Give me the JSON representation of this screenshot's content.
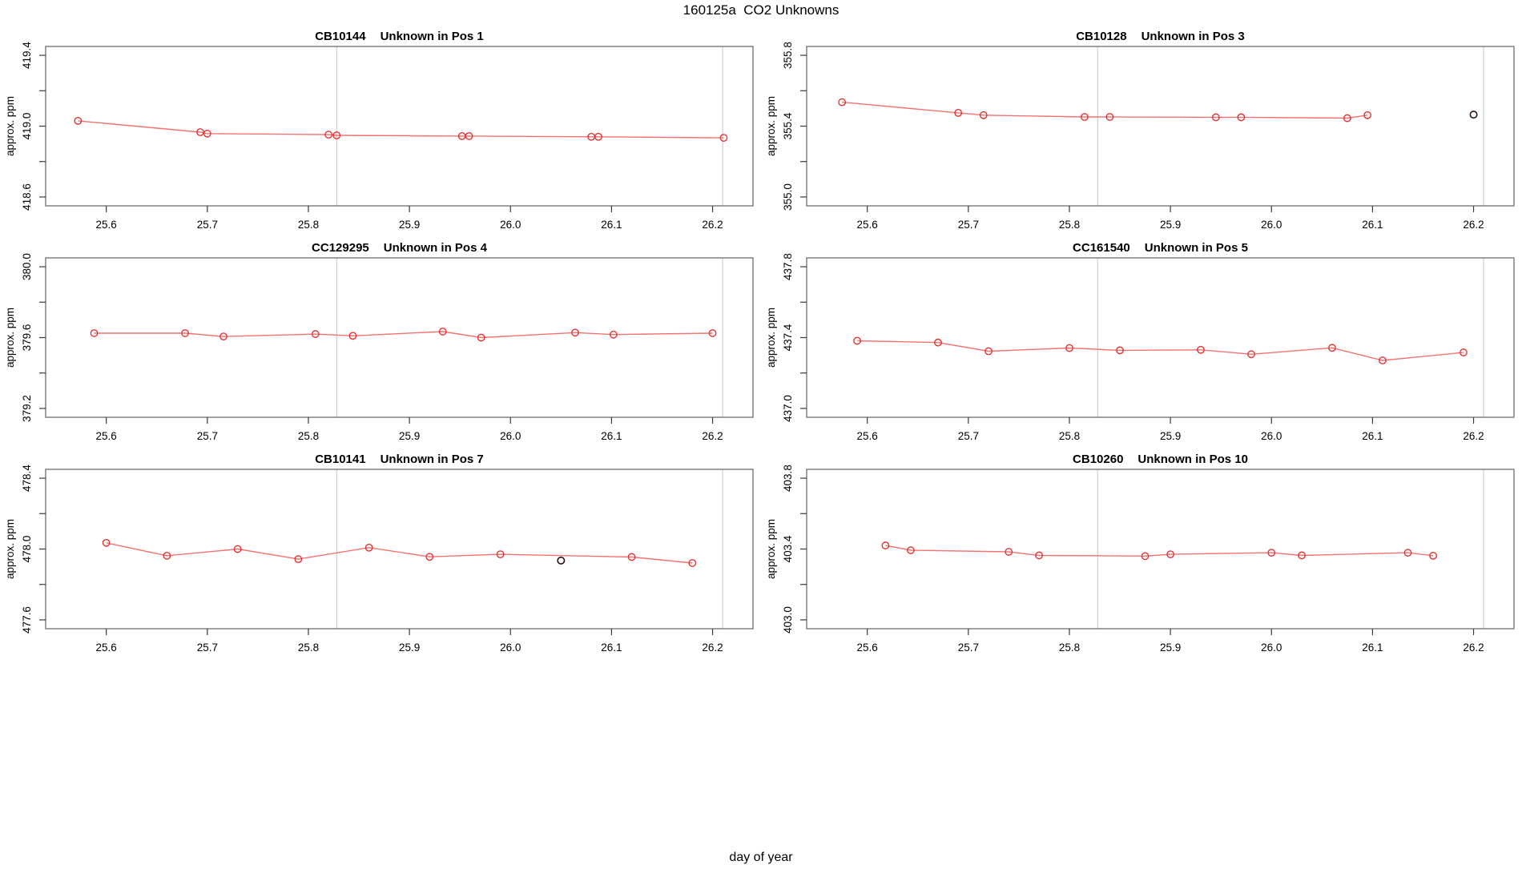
{
  "figure": {
    "main_title": "160125a  CO2 Unknowns",
    "outer_x_label": "day of year",
    "y_axis_label": "approx. ppm"
  },
  "style": {
    "series_color": "#e23232",
    "line_color": "#f47272",
    "flagged_color": "#2a0e0e",
    "vline_color": "#cdcdcd",
    "box_color": "#787878",
    "tick_color": "#3a3a3a",
    "text_color": "#000000",
    "background": "#ffffff"
  },
  "axes": {
    "x_domain": [
      25.54,
      26.24
    ],
    "x_tick_values": [
      25.6,
      25.7,
      25.8,
      25.9,
      26.0,
      26.1,
      26.2
    ],
    "x_tick_labels": [
      "25.6",
      "25.7",
      "25.8",
      "25.9",
      "26.0",
      "26.1",
      "26.2"
    ],
    "vlines": [
      25.828,
      26.21
    ],
    "y_half_range": 0.45,
    "y_minor_step": 0.2
  },
  "chart_data": {
    "type": "line",
    "marker": "open-circle",
    "grid": "off",
    "panels": [
      {
        "id": "CB10144",
        "desc": "Unknown in Pos 1",
        "y_center": 419.0,
        "y_tick_labels": [
          "418.6",
          "419.0",
          "419.4"
        ],
        "points": [
          [
            25.572,
            419.03
          ],
          [
            25.693,
            418.966
          ],
          [
            25.7,
            418.958
          ],
          [
            25.82,
            418.952
          ],
          [
            25.828,
            418.948
          ],
          [
            25.952,
            418.944
          ],
          [
            25.959,
            418.944
          ],
          [
            26.08,
            418.94
          ],
          [
            26.087,
            418.94
          ],
          [
            26.211,
            418.934
          ]
        ],
        "flagged_points": []
      },
      {
        "id": "CB10128",
        "desc": "Unknown in Pos 3",
        "y_center": 355.4,
        "y_tick_labels": [
          "355.0",
          "355.4",
          "355.8"
        ],
        "points": [
          [
            25.575,
            355.535
          ],
          [
            25.69,
            355.475
          ],
          [
            25.715,
            355.462
          ],
          [
            25.815,
            355.452
          ],
          [
            25.84,
            355.452
          ],
          [
            25.945,
            355.45
          ],
          [
            25.97,
            355.45
          ],
          [
            26.075,
            355.445
          ],
          [
            26.095,
            355.462
          ]
        ],
        "flagged_points": [
          [
            26.2,
            355.465
          ]
        ]
      },
      {
        "id": "CC129295",
        "desc": "Unknown in Pos 4",
        "y_center": 379.6,
        "y_tick_labels": [
          "379.2",
          "379.6",
          "380.0"
        ],
        "points": [
          [
            25.588,
            379.625
          ],
          [
            25.678,
            379.625
          ],
          [
            25.716,
            379.606
          ],
          [
            25.807,
            379.62
          ],
          [
            25.844,
            379.61
          ],
          [
            25.933,
            379.634
          ],
          [
            25.971,
            379.6
          ],
          [
            26.064,
            379.628
          ],
          [
            26.102,
            379.617
          ],
          [
            26.2,
            379.625
          ]
        ],
        "flagged_points": []
      },
      {
        "id": "CC161540",
        "desc": "Unknown in Pos 5",
        "y_center": 437.4,
        "y_tick_labels": [
          "437.0",
          "437.4",
          "437.8"
        ],
        "points": [
          [
            25.59,
            437.382
          ],
          [
            25.67,
            437.372
          ],
          [
            25.72,
            437.323
          ],
          [
            25.8,
            437.341
          ],
          [
            25.85,
            437.328
          ],
          [
            25.93,
            437.331
          ],
          [
            25.98,
            437.306
          ],
          [
            26.06,
            437.342
          ],
          [
            26.11,
            437.271
          ],
          [
            26.19,
            437.316
          ]
        ],
        "flagged_points": []
      },
      {
        "id": "CB10141",
        "desc": "Unknown in Pos 7",
        "y_center": 478.0,
        "y_tick_labels": [
          "477.6",
          "478.0",
          "478.4"
        ],
        "points": [
          [
            25.6,
            478.035
          ],
          [
            25.66,
            477.962
          ],
          [
            25.73,
            478.0
          ],
          [
            25.79,
            477.943
          ],
          [
            25.86,
            478.008
          ],
          [
            25.92,
            477.956
          ],
          [
            25.99,
            477.97
          ],
          [
            26.12,
            477.955
          ],
          [
            26.18,
            477.921
          ]
        ],
        "flagged_points": [
          [
            26.05,
            477.935
          ]
        ]
      },
      {
        "id": "CB10260",
        "desc": "Unknown in Pos 10",
        "y_center": 403.4,
        "y_tick_labels": [
          "403.0",
          "403.4",
          "403.8"
        ],
        "points": [
          [
            25.618,
            403.42
          ],
          [
            25.643,
            403.393
          ],
          [
            25.74,
            403.384
          ],
          [
            25.77,
            403.364
          ],
          [
            25.875,
            403.36
          ],
          [
            25.9,
            403.37
          ],
          [
            26.0,
            403.379
          ],
          [
            26.03,
            403.364
          ],
          [
            26.135,
            403.379
          ],
          [
            26.16,
            403.362
          ]
        ],
        "flagged_points": []
      }
    ]
  }
}
